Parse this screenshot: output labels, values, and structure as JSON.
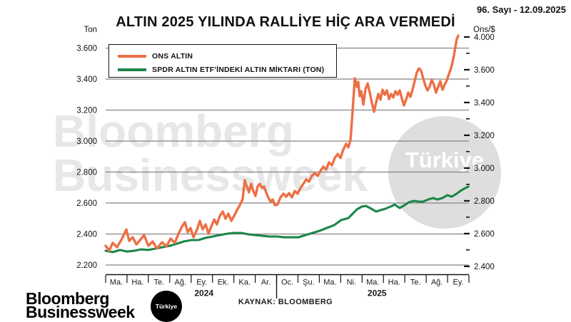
{
  "header": {
    "issue": "96. Sayı - 12.09.2025"
  },
  "footer": {
    "source": "KAYNAK: BLOOMBERG"
  },
  "branding": {
    "logo_line1": "Bloomberg",
    "logo_line2": "Businessweek",
    "badge": "Türkiye"
  },
  "watermark": {
    "line1": "Bloomberg",
    "line2": "Businessweek",
    "badge": "Türkiye"
  },
  "legend": [
    {
      "label": "ONS ALTIN",
      "color": "#EC6F45"
    },
    {
      "label": "SPDR ALTIN ETF'İNDEKİ ALTIN MİKTARI (TON)",
      "color": "#1B8649"
    }
  ],
  "chart_data": {
    "type": "line",
    "title": "ALTIN 2025 YILINDA RALLİYE HİÇ ARA VERMEDİ",
    "grid": true,
    "legend_position": "top-left",
    "left_axis": {
      "title": "Ton",
      "range": [
        2200,
        3600
      ],
      "step": 200,
      "ticks": [
        "2.200",
        "2.400",
        "2.600",
        "2.800",
        "3.000",
        "3.200",
        "3.400",
        "3.600"
      ]
    },
    "right_axis": {
      "title": "Ons/$",
      "ticks": [
        "2.400",
        "2.600",
        "2.800",
        "3.000",
        "3.200",
        "3.400",
        "3.600",
        "4.000"
      ]
    },
    "x_axis": {
      "months": [
        "Ma.",
        "Ha.",
        "Te.",
        "Ağ.",
        "Ey.",
        "Ek.",
        "Ka.",
        "Ar.",
        "Oc.",
        "Şu.",
        "Ma.",
        "Ni.",
        "Ma.",
        "Ha.",
        "Te.",
        "Ağ.",
        "Ey."
      ],
      "years": [
        {
          "label": "2024",
          "center_month": 4.6
        },
        {
          "label": "2025",
          "center_month": 12.7
        }
      ]
    },
    "series": [
      {
        "name": "ONS ALTIN",
        "color": "#EC6F45",
        "width": 3.4,
        "points": [
          [
            0,
            2324
          ],
          [
            0.17,
            2292
          ],
          [
            0.33,
            2343
          ],
          [
            0.53,
            2315
          ],
          [
            0.73,
            2361
          ],
          [
            0.97,
            2430
          ],
          [
            1.1,
            2356
          ],
          [
            1.27,
            2379
          ],
          [
            1.44,
            2333
          ],
          [
            1.64,
            2366
          ],
          [
            1.8,
            2393
          ],
          [
            2,
            2324
          ],
          [
            2.2,
            2352
          ],
          [
            2.4,
            2306
          ],
          [
            2.64,
            2347
          ],
          [
            2.84,
            2320
          ],
          [
            3.04,
            2370
          ],
          [
            3.24,
            2343
          ],
          [
            3.41,
            2402
          ],
          [
            3.57,
            2448
          ],
          [
            3.71,
            2476
          ],
          [
            3.84,
            2412
          ],
          [
            3.97,
            2439
          ],
          [
            4.11,
            2379
          ],
          [
            4.28,
            2430
          ],
          [
            4.41,
            2485
          ],
          [
            4.54,
            2430
          ],
          [
            4.68,
            2462
          ],
          [
            4.81,
            2402
          ],
          [
            4.94,
            2448
          ],
          [
            5.08,
            2494
          ],
          [
            5.21,
            2462
          ],
          [
            5.34,
            2517
          ],
          [
            5.48,
            2545
          ],
          [
            5.61,
            2499
          ],
          [
            5.74,
            2531
          ],
          [
            5.88,
            2485
          ],
          [
            6.01,
            2517
          ],
          [
            6.15,
            2554
          ],
          [
            6.28,
            2586
          ],
          [
            6.41,
            2623
          ],
          [
            6.51,
            2747
          ],
          [
            6.61,
            2706
          ],
          [
            6.71,
            2669
          ],
          [
            6.81,
            2724
          ],
          [
            6.91,
            2678
          ],
          [
            7.01,
            2646
          ],
          [
            7.11,
            2706
          ],
          [
            7.21,
            2724
          ],
          [
            7.31,
            2697
          ],
          [
            7.41,
            2706
          ],
          [
            7.51,
            2669
          ],
          [
            7.62,
            2632
          ],
          [
            7.72,
            2609
          ],
          [
            7.82,
            2623
          ],
          [
            7.92,
            2586
          ],
          [
            8.05,
            2591
          ],
          [
            8.18,
            2637
          ],
          [
            8.32,
            2660
          ],
          [
            8.45,
            2641
          ],
          [
            8.58,
            2664
          ],
          [
            8.72,
            2637
          ],
          [
            8.85,
            2678
          ],
          [
            8.98,
            2660
          ],
          [
            9.12,
            2697
          ],
          [
            9.25,
            2724
          ],
          [
            9.39,
            2752
          ],
          [
            9.52,
            2738
          ],
          [
            9.65,
            2775
          ],
          [
            9.79,
            2793
          ],
          [
            9.92,
            2775
          ],
          [
            10.05,
            2807
          ],
          [
            10.19,
            2835
          ],
          [
            10.32,
            2816
          ],
          [
            10.45,
            2862
          ],
          [
            10.59,
            2844
          ],
          [
            10.72,
            2890
          ],
          [
            10.86,
            2917
          ],
          [
            10.99,
            2890
          ],
          [
            11.12,
            2945
          ],
          [
            11.26,
            2982
          ],
          [
            11.36,
            2959
          ],
          [
            11.46,
            3009
          ],
          [
            11.56,
            3198
          ],
          [
            11.66,
            3405
          ],
          [
            11.76,
            3349
          ],
          [
            11.82,
            3382
          ],
          [
            11.89,
            3290
          ],
          [
            11.96,
            3322
          ],
          [
            12.06,
            3235
          ],
          [
            12.16,
            3336
          ],
          [
            12.26,
            3372
          ],
          [
            12.36,
            3313
          ],
          [
            12.46,
            3244
          ],
          [
            12.56,
            3189
          ],
          [
            12.66,
            3253
          ],
          [
            12.76,
            3304
          ],
          [
            12.86,
            3267
          ],
          [
            12.96,
            3331
          ],
          [
            13.06,
            3299
          ],
          [
            13.16,
            3327
          ],
          [
            13.26,
            3271
          ],
          [
            13.36,
            3304
          ],
          [
            13.46,
            3281
          ],
          [
            13.56,
            3322
          ],
          [
            13.66,
            3299
          ],
          [
            13.76,
            3327
          ],
          [
            13.86,
            3276
          ],
          [
            13.96,
            3230
          ],
          [
            14.06,
            3267
          ],
          [
            14.16,
            3313
          ],
          [
            14.26,
            3285
          ],
          [
            14.36,
            3331
          ],
          [
            14.46,
            3386
          ],
          [
            14.56,
            3442
          ],
          [
            14.66,
            3469
          ],
          [
            14.76,
            3455
          ],
          [
            14.86,
            3405
          ],
          [
            14.96,
            3359
          ],
          [
            15.06,
            3327
          ],
          [
            15.16,
            3350
          ],
          [
            15.26,
            3396
          ],
          [
            15.36,
            3363
          ],
          [
            15.46,
            3313
          ],
          [
            15.56,
            3350
          ],
          [
            15.66,
            3386
          ],
          [
            15.76,
            3331
          ],
          [
            15.86,
            3363
          ],
          [
            15.96,
            3391
          ],
          [
            16.06,
            3432
          ],
          [
            16.16,
            3469
          ],
          [
            16.23,
            3506
          ],
          [
            16.3,
            3552
          ],
          [
            16.37,
            3611
          ],
          [
            16.43,
            3657
          ],
          [
            16.5,
            3680
          ]
        ]
      },
      {
        "name": "SPDR ALTIN ETF'İNDEKİ ALTIN MİKTARI (TON)",
        "color": "#1B8649",
        "width": 3.1,
        "points": [
          [
            0,
            2292
          ],
          [
            0.33,
            2283
          ],
          [
            0.67,
            2297
          ],
          [
            1,
            2287
          ],
          [
            1.34,
            2292
          ],
          [
            1.67,
            2301
          ],
          [
            2,
            2297
          ],
          [
            2.34,
            2306
          ],
          [
            2.67,
            2315
          ],
          [
            3.01,
            2324
          ],
          [
            3.34,
            2338
          ],
          [
            3.67,
            2352
          ],
          [
            4.01,
            2361
          ],
          [
            4.34,
            2361
          ],
          [
            4.68,
            2375
          ],
          [
            5.01,
            2384
          ],
          [
            5.34,
            2393
          ],
          [
            5.68,
            2402
          ],
          [
            6.01,
            2407
          ],
          [
            6.35,
            2407
          ],
          [
            6.68,
            2398
          ],
          [
            7.01,
            2393
          ],
          [
            7.35,
            2388
          ],
          [
            7.68,
            2384
          ],
          [
            8.02,
            2384
          ],
          [
            8.35,
            2379
          ],
          [
            8.68,
            2379
          ],
          [
            9.02,
            2379
          ],
          [
            9.35,
            2393
          ],
          [
            9.69,
            2407
          ],
          [
            10.02,
            2421
          ],
          [
            10.35,
            2439
          ],
          [
            10.69,
            2457
          ],
          [
            11.02,
            2490
          ],
          [
            11.36,
            2503
          ],
          [
            11.56,
            2531
          ],
          [
            11.76,
            2559
          ],
          [
            11.99,
            2577
          ],
          [
            12.19,
            2581
          ],
          [
            12.43,
            2563
          ],
          [
            12.66,
            2545
          ],
          [
            12.86,
            2554
          ],
          [
            13.09,
            2563
          ],
          [
            13.33,
            2577
          ],
          [
            13.53,
            2590
          ],
          [
            13.76,
            2568
          ],
          [
            13.99,
            2586
          ],
          [
            14.19,
            2605
          ],
          [
            14.43,
            2614
          ],
          [
            14.66,
            2609
          ],
          [
            14.86,
            2609
          ],
          [
            15.09,
            2623
          ],
          [
            15.33,
            2632
          ],
          [
            15.53,
            2623
          ],
          [
            15.76,
            2632
          ],
          [
            15.99,
            2651
          ],
          [
            16.19,
            2641
          ],
          [
            16.43,
            2660
          ],
          [
            16.6,
            2678
          ],
          [
            16.77,
            2692
          ],
          [
            16.9,
            2701
          ],
          [
            16.97,
            2706
          ]
        ]
      }
    ]
  }
}
